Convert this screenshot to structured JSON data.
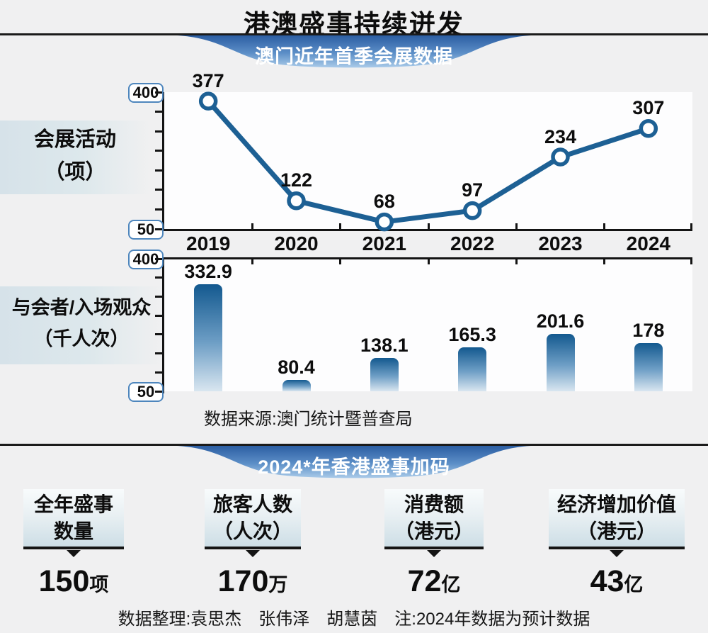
{
  "page": {
    "title": "港澳盛事持续迸发"
  },
  "sections": {
    "macau": {
      "banner": "澳门近年首季会展数据",
      "source": "数据来源:澳门统计暨普查局"
    },
    "hongkong": {
      "banner": "2024*年香港盛事加码",
      "footer": "数据整理:袁思杰　张伟泽　胡慧茵　注:2024年数据为预计数据"
    }
  },
  "chart_data": [
    {
      "type": "line",
      "title": "会展活动（项）",
      "label_lines": [
        "会展活动",
        "（项）"
      ],
      "categories": [
        "2019",
        "2020",
        "2021",
        "2022",
        "2023",
        "2024"
      ],
      "values": [
        377,
        122,
        68,
        97,
        234,
        307
      ],
      "ylim": [
        50,
        400
      ],
      "yticks": [
        50,
        100,
        150,
        200,
        250,
        300,
        350,
        400
      ],
      "grid": false,
      "legend": "none"
    },
    {
      "type": "bar",
      "title": "与会者/入场观众（千人次）",
      "label_lines": [
        "与会者/入场观众",
        "（千人次）"
      ],
      "categories": [
        "2019",
        "2020",
        "2021",
        "2022",
        "2023",
        "2024"
      ],
      "values": [
        332.9,
        80.4,
        138.1,
        165.3,
        201.6,
        178
      ],
      "ylim": [
        50,
        400
      ],
      "yticks": [
        50,
        100,
        150,
        200,
        250,
        300,
        350,
        400
      ],
      "grid": false,
      "legend": "none"
    }
  ],
  "stats": [
    {
      "label1": "全年盛事",
      "label2": "数量",
      "value": "150",
      "unit": "项"
    },
    {
      "label1": "旅客人数",
      "label2": "（人次）",
      "value": "170",
      "unit": "万"
    },
    {
      "label1": "消费额",
      "label2": "（港元）",
      "value": "72",
      "unit": "亿"
    },
    {
      "label1": "经济增加价值",
      "label2": "（港元）",
      "value": "43",
      "unit": "亿"
    }
  ],
  "colors": {
    "background": "#f0f0f1",
    "line": "#1d6094",
    "marker_fill": "#ffffff",
    "bar_gradient_top": "#13598f",
    "bar_gradient_mid": "#6f9fc6",
    "bar_gradient_bottom": "#d9e6f0",
    "banner_top": "#2c5ea3",
    "banner_mid": "#5c8fc7",
    "banner_bottom": "#aacbe9",
    "axis": "#141414",
    "label_box_border": "#4e86bd"
  }
}
